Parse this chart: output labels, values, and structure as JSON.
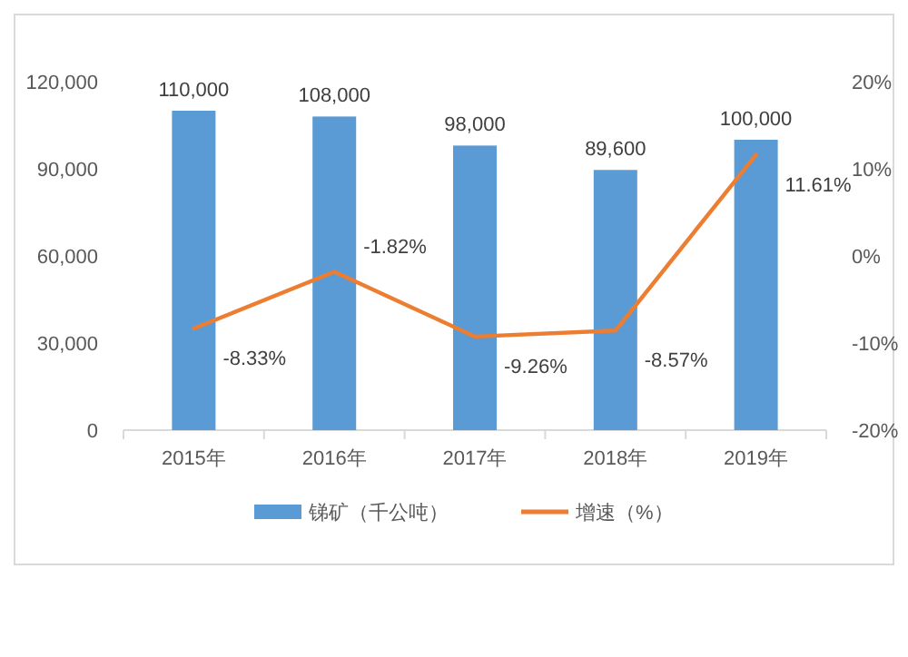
{
  "chart_data": {
    "type": "bar",
    "categories": [
      "2015年",
      "2016年",
      "2017年",
      "2018年",
      "2019年"
    ],
    "series": [
      {
        "name": "锑矿（千公吨）",
        "color": "#5b9bd5",
        "values": [
          110000,
          108000,
          98000,
          89600,
          100000
        ],
        "value_labels": [
          "110,000",
          "108,000",
          "98,000",
          "89,600",
          "100,000"
        ]
      },
      {
        "name": "增速（%）",
        "type": "line",
        "axis": "y2",
        "color": "#ed7d31",
        "values": [
          -8.33,
          -1.82,
          -9.26,
          -8.57,
          11.61
        ],
        "value_labels": [
          "-8.33%",
          "-1.82%",
          "-9.26%",
          "-8.57%",
          "11.61%"
        ]
      }
    ],
    "ylim": [
      0,
      120000
    ],
    "yticks": [
      0,
      {
        "value": 30000,
        "label": "30,000"
      },
      {
        "value": 60000,
        "label": "60,000"
      },
      {
        "value": 90000,
        "label": "90,000"
      },
      {
        "value": 120000,
        "label": "120,000"
      }
    ],
    "y2lim": [
      -20,
      20
    ],
    "y2ticks": [
      {
        "value": -20,
        "label": "-20%"
      },
      {
        "value": -10,
        "label": "-10%"
      },
      {
        "value": 0,
        "label": "0%"
      },
      {
        "value": 10,
        "label": "10%"
      },
      {
        "value": 20,
        "label": "20%"
      }
    ],
    "legend": "bottom",
    "grid": false,
    "marker": "none"
  }
}
